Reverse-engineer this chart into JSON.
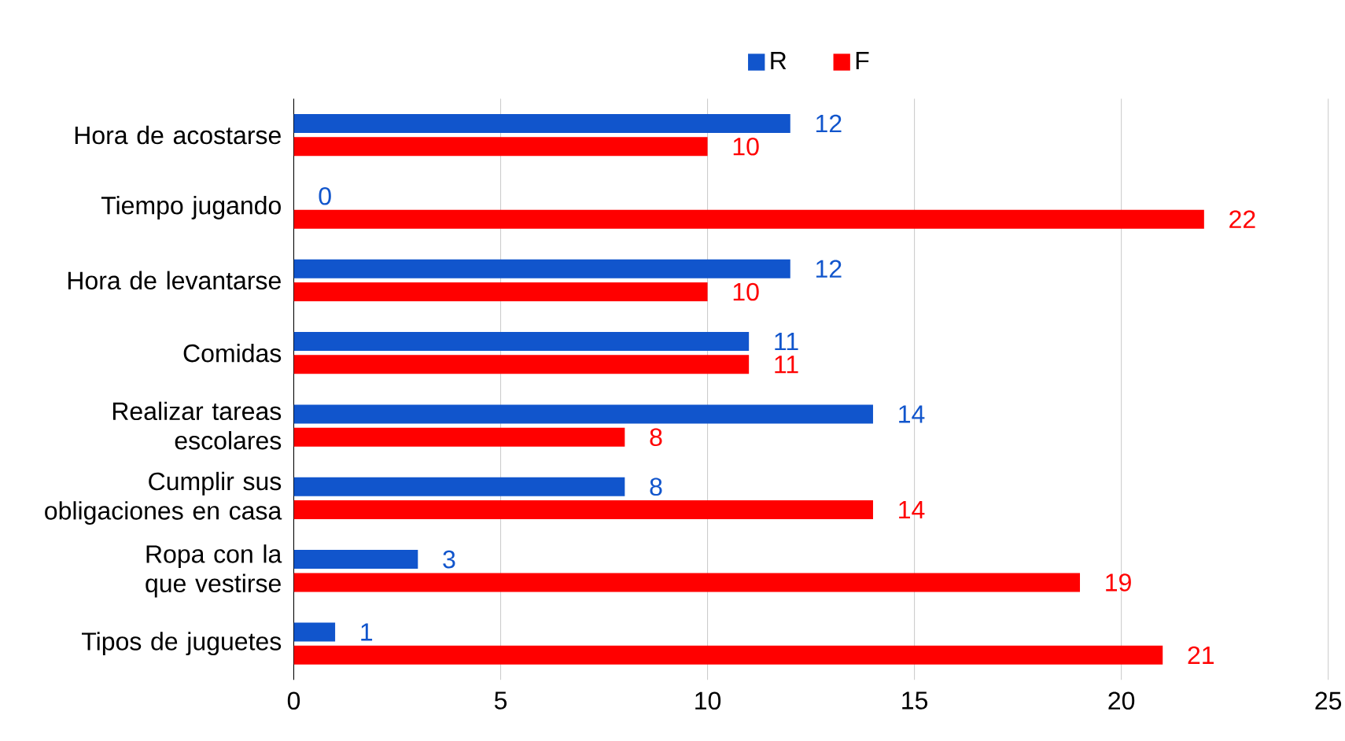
{
  "chart_data": {
    "type": "bar",
    "orientation": "horizontal",
    "categories": [
      "Hora de acostarse",
      "Tiempo jugando",
      "Hora de levantarse",
      "Comidas",
      "Realizar tareas escolares",
      "Cumplir sus obligaciones en casa",
      "Ropa con la que vestirse",
      "Tipos de juguetes"
    ],
    "series": [
      {
        "name": "R",
        "color": "#1155cc",
        "values": [
          12,
          0,
          12,
          11,
          14,
          8,
          3,
          1
        ]
      },
      {
        "name": "F",
        "color": "#ff0000",
        "values": [
          10,
          22,
          10,
          11,
          8,
          14,
          19,
          21
        ]
      }
    ],
    "xlim": [
      0,
      25
    ],
    "xticks": [
      0,
      5,
      10,
      15,
      20,
      25
    ],
    "grid": "x",
    "legend": "top",
    "data_labels": true
  }
}
